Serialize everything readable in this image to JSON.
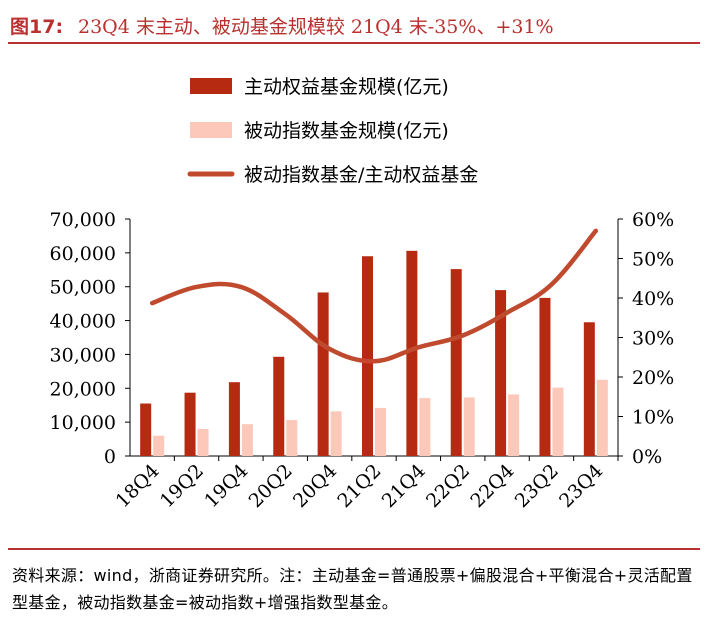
{
  "header": {
    "figure_label": "图17:",
    "title": "23Q4 末主动、被动基金规模较 21Q4 末-35%、+31%"
  },
  "chart_data": {
    "type": "bar",
    "categories": [
      "18Q4",
      "19Q2",
      "19Q4",
      "20Q2",
      "20Q4",
      "21Q2",
      "21Q4",
      "22Q2",
      "22Q4",
      "23Q2",
      "23Q4"
    ],
    "series": [
      {
        "name": "主动权益基金规模(亿元)",
        "kind": "bar",
        "axis": "left",
        "color": "#b52a11",
        "values": [
          15500,
          18700,
          21800,
          29300,
          48300,
          59000,
          60600,
          55200,
          49000,
          46700,
          39500
        ]
      },
      {
        "name": "被动指数基金规模(亿元)",
        "kind": "bar",
        "axis": "left",
        "color": "#fbc8ba",
        "values": [
          6000,
          8000,
          9400,
          10600,
          13200,
          14200,
          17100,
          17300,
          18200,
          20200,
          22500
        ]
      },
      {
        "name": "被动指数基金/主动权益基金",
        "kind": "line",
        "axis": "right",
        "color": "#bf4a2e",
        "values": [
          0.387,
          0.428,
          0.428,
          0.359,
          0.271,
          0.24,
          0.275,
          0.305,
          0.363,
          0.434,
          0.57
        ]
      }
    ],
    "y_left": {
      "min": 0,
      "max": 70000,
      "ticks": [
        "0",
        "10,000",
        "20,000",
        "30,000",
        "40,000",
        "50,000",
        "60,000",
        "70,000"
      ]
    },
    "y_right": {
      "min": 0,
      "max": 0.6,
      "ticks": [
        "0%",
        "10%",
        "20%",
        "30%",
        "40%",
        "50%",
        "60%"
      ]
    },
    "legend_position": "top-center",
    "grid": false
  },
  "footer": {
    "source": "资料来源：wind，浙商证券研究所。注：主动基金=普通股票+偏股混合+平衡混合+灵活配置型基金，被动指数基金=被动指数+增强指数型基金。"
  }
}
